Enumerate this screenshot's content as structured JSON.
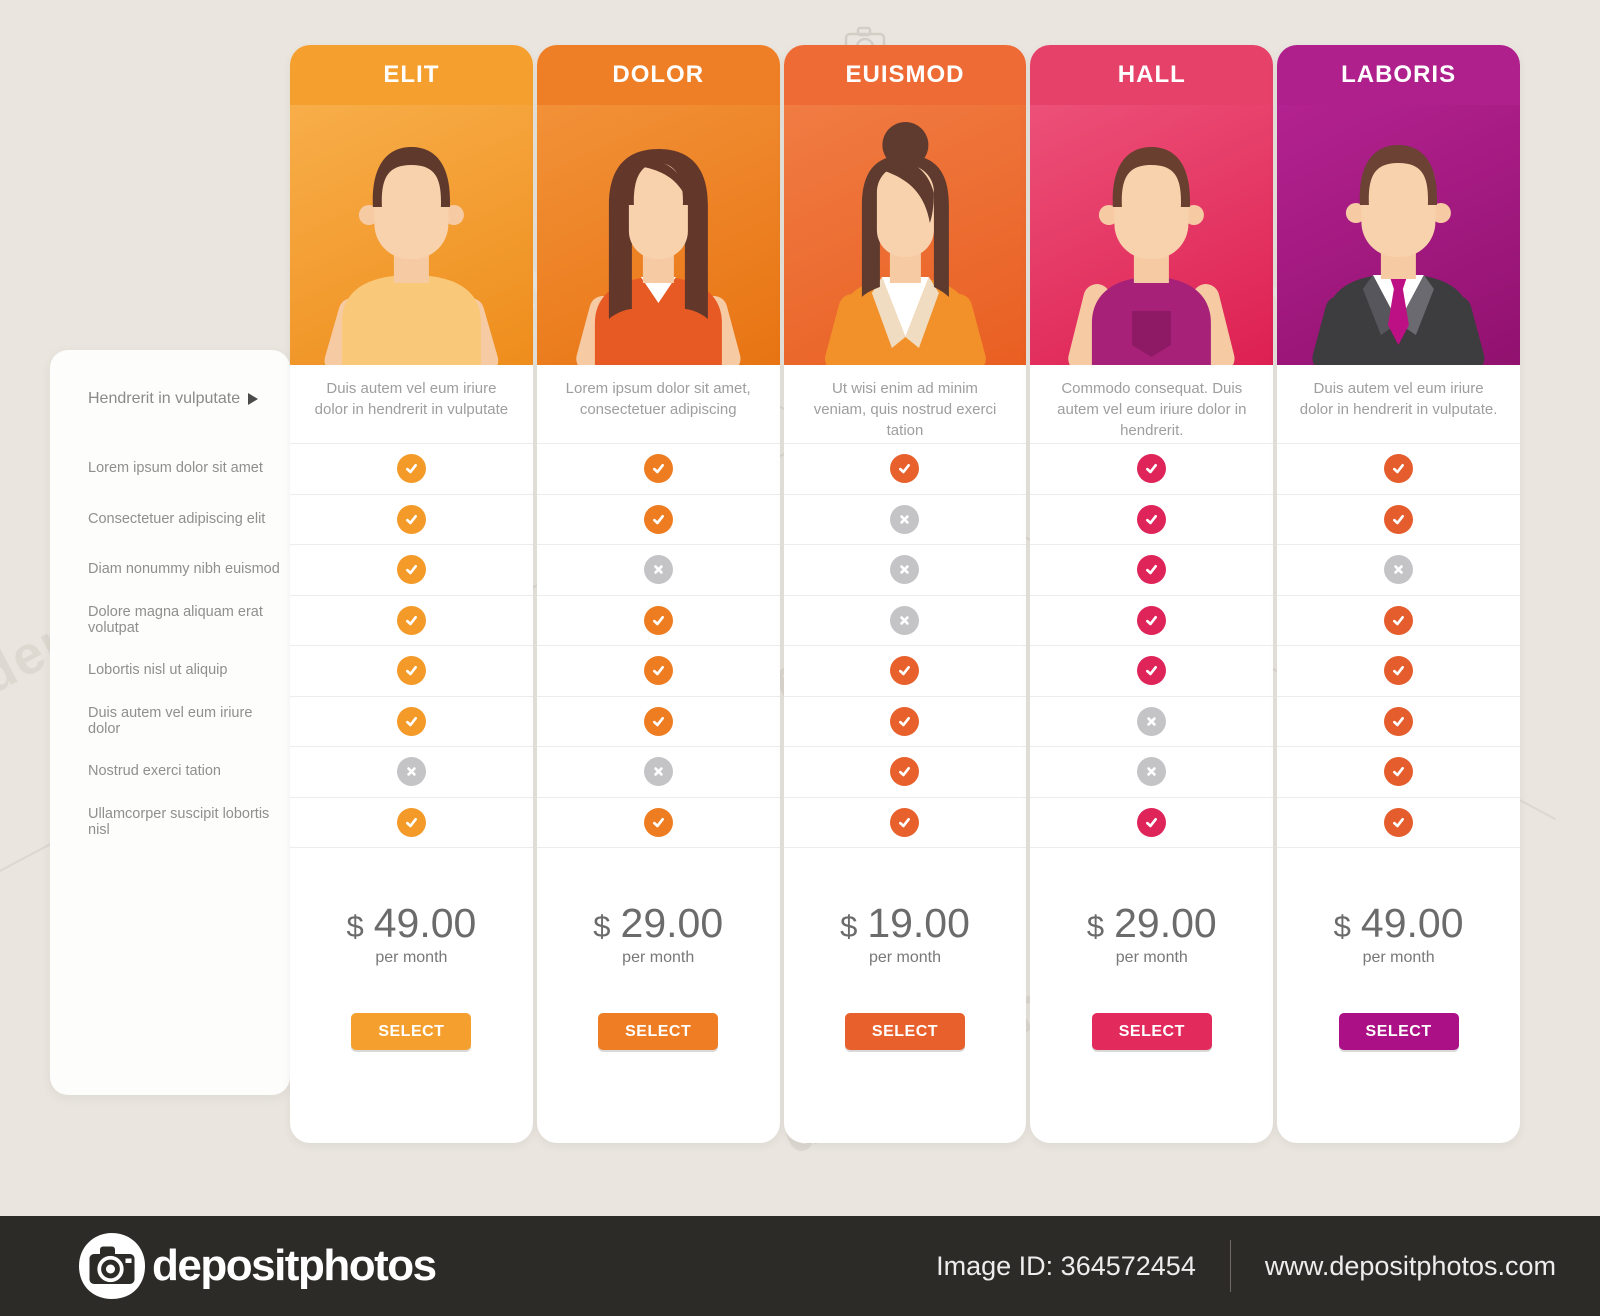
{
  "watermark": {
    "text": "depositphotos"
  },
  "features_panel": {
    "header": "Hendrerit in vulputate",
    "items": [
      "Lorem ipsum dolor sit amet",
      "Consectetuer adipiscing elit",
      "Diam nonummy nibh euismod",
      "Dolore magna aliquam erat volutpat",
      "Lobortis nisl ut aliquip",
      "Duis autem vel eum iriure dolor",
      "Nostrud exerci tation",
      "Ullamcorper suscipit lobortis nisl"
    ]
  },
  "plans": [
    {
      "name": "ELIT",
      "description": "Duis autem vel eum iriure dolor in hendrerit in vulputate",
      "currency": "$",
      "price": "49.00",
      "period": "per month",
      "button_label": "SELECT",
      "features": [
        true,
        true,
        true,
        true,
        true,
        true,
        false,
        true
      ],
      "avatar": "man-tshirt",
      "colors": {
        "header": "#F5A02E",
        "gradient_from": "#F8AE49",
        "gradient_to": "#EE8D1C",
        "accent": "#F39A28",
        "button": "#F5A02E"
      }
    },
    {
      "name": "DOLOR",
      "description": "Lorem ipsum dolor sit amet, consectetuer adipiscing",
      "currency": "$",
      "price": "29.00",
      "period": "per month",
      "button_label": "SELECT",
      "features": [
        true,
        true,
        false,
        true,
        true,
        true,
        false,
        true
      ],
      "avatar": "woman-longhair",
      "colors": {
        "header": "#EF7F26",
        "gradient_from": "#F29138",
        "gradient_to": "#E87412",
        "accent": "#EE7D22",
        "button": "#EE7D24"
      }
    },
    {
      "name": "EUISMOD",
      "description": "Ut wisi enim ad minim veniam, quis nostrud exerci tation",
      "currency": "$",
      "price": "19.00",
      "period": "per month",
      "button_label": "SELECT",
      "features": [
        true,
        false,
        false,
        false,
        true,
        true,
        true,
        true
      ],
      "avatar": "woman-bun",
      "colors": {
        "header": "#EE6B36",
        "gradient_from": "#F07C43",
        "gradient_to": "#E95F22",
        "accent": "#E8612C",
        "button": "#E8612C"
      }
    },
    {
      "name": "HALL",
      "description": "Commodo consequat. Duis autem vel eum iriure dolor in hendrerit.",
      "currency": "$",
      "price": "29.00",
      "period": "per month",
      "button_label": "SELECT",
      "features": [
        true,
        true,
        true,
        true,
        true,
        false,
        false,
        true
      ],
      "avatar": "man-tank",
      "colors": {
        "header": "#E64169",
        "gradient_from": "#EC5078",
        "gradient_to": "#DD2052",
        "accent": "#DE2458",
        "button": "#E22A5C"
      }
    },
    {
      "name": "LABORIS",
      "description": "Duis autem vel eum iriure dolor in hendrerit in vulputate.",
      "currency": "$",
      "price": "49.00",
      "period": "per month",
      "button_label": "SELECT",
      "features": [
        true,
        true,
        false,
        true,
        true,
        true,
        true,
        true
      ],
      "avatar": "man-suit",
      "colors": {
        "header": "#B0208D",
        "gradient_from": "#B32290",
        "gradient_to": "#91116F",
        "accent": "#E55D2D",
        "button": "#AC1086"
      }
    }
  ],
  "footer": {
    "logo_text": "depositphotos",
    "image_id": "Image ID: 364572454",
    "website": "www.depositphotos.com"
  }
}
